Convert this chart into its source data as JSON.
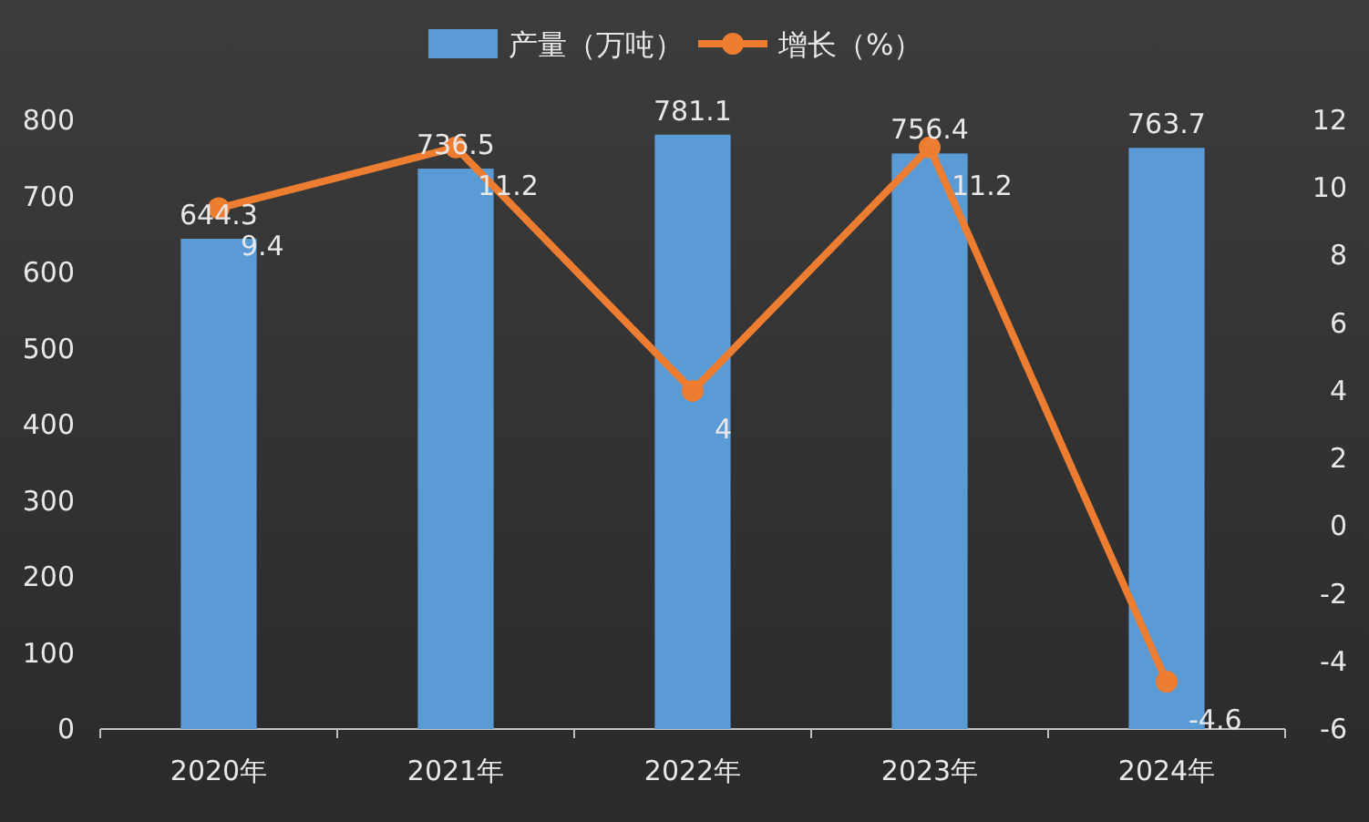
{
  "chart_data": {
    "type": "bar",
    "categories": [
      "2020年",
      "2021年",
      "2022年",
      "2023年",
      "2024年"
    ],
    "series": [
      {
        "name": "产量（万吨）",
        "color": "#5b9bd5",
        "values": [
          644.3,
          736.5,
          781.1,
          756.4,
          763.7
        ]
      },
      {
        "name": "增长（%）",
        "type": "line",
        "axis": "y2",
        "marker": "circle",
        "color": "#ed7d31",
        "values": [
          9.4,
          11.2,
          4,
          11.2,
          -4.6
        ]
      }
    ],
    "ylim": [
      0,
      800
    ],
    "yticks": [
      0,
      100,
      200,
      300,
      400,
      500,
      600,
      700,
      800
    ],
    "y2lim": [
      -6,
      12
    ],
    "y2ticks": [
      -6,
      -4,
      -2,
      0,
      2,
      4,
      6,
      8,
      10,
      12
    ],
    "legend": "top",
    "data_labels": true
  }
}
